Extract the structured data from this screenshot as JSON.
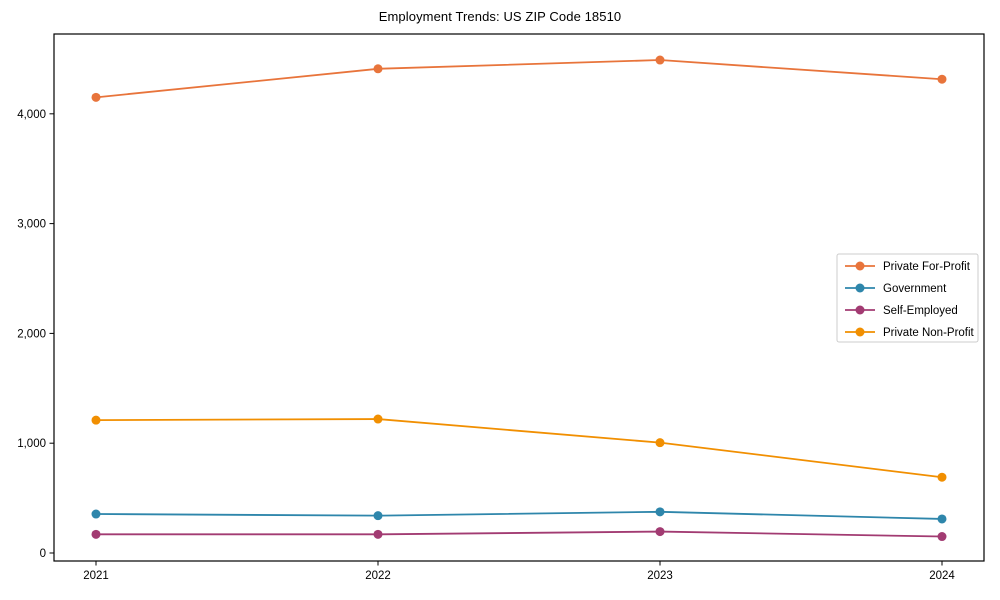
{
  "chart_data": {
    "type": "line",
    "title": "Employment Trends: US ZIP Code 18510",
    "categories": [
      "2021",
      "2022",
      "2023",
      "2024"
    ],
    "series": [
      {
        "name": "Private For-Profit",
        "color": "#E8743B",
        "values": [
          4150,
          4410,
          4490,
          4315
        ]
      },
      {
        "name": "Government",
        "color": "#2E86AB",
        "values": [
          355,
          340,
          375,
          310
        ]
      },
      {
        "name": "Self-Employed",
        "color": "#A23B72",
        "values": [
          170,
          170,
          195,
          150
        ]
      },
      {
        "name": "Private Non-Profit",
        "color": "#F18F01",
        "values": [
          1210,
          1220,
          1005,
          690
        ]
      }
    ],
    "xlabel": "",
    "ylabel": "",
    "ylim": [
      -73,
      4727
    ],
    "yticks": [
      0,
      1000,
      2000,
      3000,
      4000
    ],
    "ytick_labels": [
      "0",
      "1,000",
      "2,000",
      "3,000",
      "4,000"
    ],
    "grid": false,
    "marker": "circle",
    "legend": {
      "position": "center-right",
      "entries": [
        "Private For-Profit",
        "Government",
        "Self-Employed",
        "Private Non-Profit"
      ]
    },
    "colors": {
      "axis": "#000000",
      "tick_label": "#000000",
      "legend_border": "#cccccc",
      "legend_background": "#ffffff"
    }
  }
}
